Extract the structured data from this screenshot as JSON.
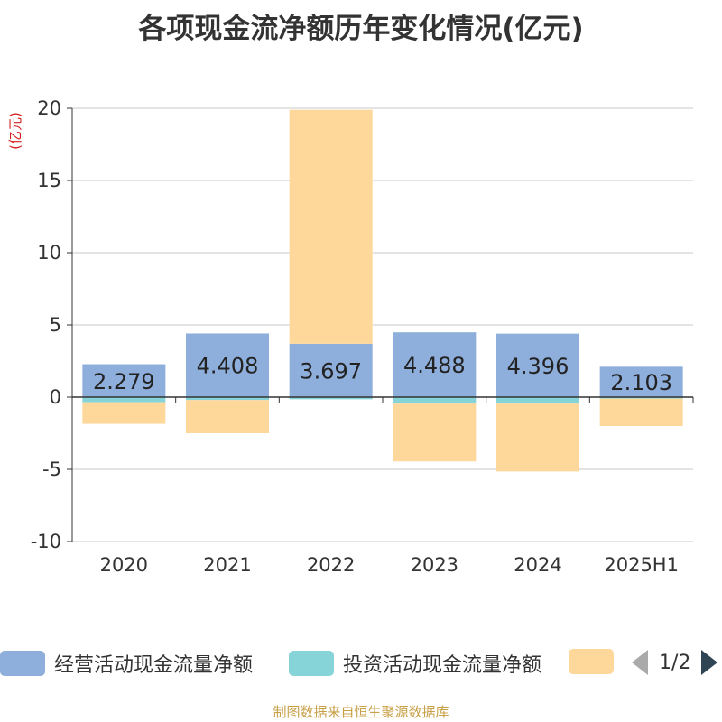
{
  "title": "各项现金流净额历年变化情况(亿元)",
  "source": "制图数据来自恒生聚源数据库",
  "legend": {
    "items": [
      {
        "label": "经营活动现金流量净额",
        "color": "#8eaedb"
      },
      {
        "label": "投资活动现金流量净额",
        "color": "#86d4d8"
      },
      {
        "label": "",
        "color": "#fed89b"
      }
    ],
    "page": "1/2"
  },
  "chart_data": {
    "type": "bar",
    "stacked": true,
    "ylabel": "(亿元)",
    "ylim": [
      -10,
      20
    ],
    "yticks": [
      20,
      15,
      10,
      5,
      0,
      -5,
      -10
    ],
    "grid": true,
    "categories": [
      "2020",
      "2021",
      "2022",
      "2023",
      "2024",
      "2025H1"
    ],
    "series": [
      {
        "name": "经营活动现金流量净额",
        "color": "#8eaedb",
        "values": [
          2.279,
          4.408,
          3.697,
          4.488,
          4.396,
          2.103
        ],
        "labels": [
          "2.279",
          "4.408",
          "3.697",
          "4.488",
          "4.396",
          "2.103"
        ]
      },
      {
        "name": "投资活动现金流量净额",
        "color": "#86d4d8",
        "values": [
          -0.35,
          -0.2,
          -0.15,
          -0.45,
          -0.45,
          -0.1
        ]
      },
      {
        "color": "#fed89b",
        "values": [
          -1.5,
          -2.3,
          16.2,
          -4.0,
          -4.7,
          -1.9
        ]
      }
    ]
  }
}
